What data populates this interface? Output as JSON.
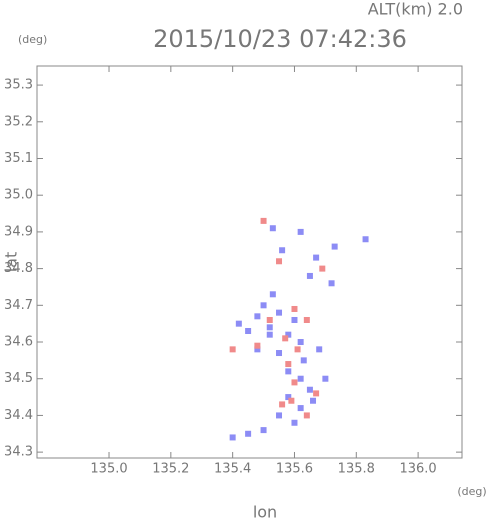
{
  "chart_data": {
    "type": "scatter",
    "title": "2015/10/23 07:42:36",
    "annotation": "ALT(km) 2.0",
    "x_label": "lon",
    "y_label": "lat",
    "x_unit": "(deg)",
    "y_unit": "(deg)",
    "xlim": [
      134.767,
      136.142
    ],
    "ylim": [
      34.284,
      35.352
    ],
    "xticks": [
      {
        "value": 135.0,
        "label": "135.0"
      },
      135.2,
      135.4,
      135.6,
      135.8,
      {
        "value": 136.0,
        "label": "136.0"
      }
    ],
    "yticks": [
      34.3,
      34.4,
      34.5,
      34.6,
      34.7,
      34.8,
      34.9,
      {
        "value": 35.0,
        "label": "35.0"
      },
      35.1,
      35.2,
      35.3
    ],
    "series": [
      {
        "color": "#8c8cf5",
        "x": [
          135.53,
          135.56,
          135.62,
          135.67,
          135.73,
          135.65,
          135.72,
          135.83,
          135.5,
          135.55,
          135.6,
          135.42,
          135.45,
          135.52,
          135.58,
          135.62,
          135.48,
          135.55,
          135.63,
          135.58,
          135.62,
          135.65,
          135.58,
          135.62,
          135.66,
          135.55,
          135.6,
          135.5,
          135.45,
          135.4,
          135.52,
          135.68,
          135.7,
          135.53,
          135.48
        ],
        "values": [
          34.91,
          34.85,
          34.9,
          34.83,
          34.86,
          34.78,
          34.76,
          34.88,
          34.7,
          34.68,
          34.66,
          34.65,
          34.63,
          34.64,
          34.62,
          34.6,
          34.58,
          34.57,
          34.55,
          34.52,
          34.5,
          34.47,
          34.45,
          34.42,
          34.44,
          34.4,
          34.38,
          34.36,
          34.35,
          34.34,
          34.62,
          34.58,
          34.5,
          34.73,
          34.67
        ]
      },
      {
        "color": "#f08a8a",
        "x": [
          135.5,
          135.55,
          135.69,
          135.6,
          135.64,
          135.52,
          135.57,
          135.48,
          135.61,
          135.58,
          135.6,
          135.67,
          135.56,
          135.64,
          135.59,
          135.4
        ],
        "values": [
          34.93,
          34.82,
          34.8,
          34.69,
          34.66,
          34.66,
          34.61,
          34.59,
          34.58,
          34.54,
          34.49,
          34.46,
          34.43,
          34.4,
          34.44,
          34.58
        ]
      }
    ]
  }
}
